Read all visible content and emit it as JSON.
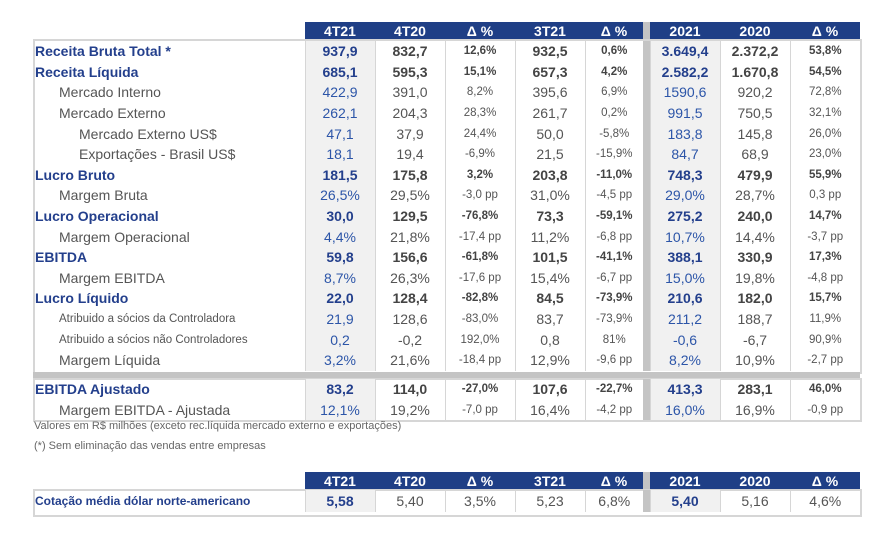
{
  "columns": [
    "4T21",
    "4T20",
    "Δ %",
    "3T21",
    "Δ %",
    "2021",
    "2020",
    "Δ %"
  ],
  "rows": [
    {
      "type": "b",
      "label": "Receita Bruta Total *",
      "values": [
        "937,9",
        "832,7",
        "12,6%",
        "932,5",
        "0,6%",
        "3.649,4",
        "2.372,2",
        "53,8%"
      ]
    },
    {
      "type": "b",
      "label": "Receita Líquida",
      "values": [
        "685,1",
        "595,3",
        "15,1%",
        "657,3",
        "4,2%",
        "2.582,2",
        "1.670,8",
        "54,5%"
      ]
    },
    {
      "type": "ind1",
      "label": "Mercado Interno",
      "values": [
        "422,9",
        "391,0",
        "8,2%",
        "395,6",
        "6,9%",
        "1590,6",
        "920,2",
        "72,8%"
      ]
    },
    {
      "type": "ind1",
      "label": "Mercado Externo",
      "values": [
        "262,1",
        "204,3",
        "28,3%",
        "261,7",
        "0,2%",
        "991,5",
        "750,5",
        "32,1%"
      ]
    },
    {
      "type": "ind2",
      "label": "Mercado Externo US$",
      "values": [
        "47,1",
        "37,9",
        "24,4%",
        "50,0",
        "-5,8%",
        "183,8",
        "145,8",
        "26,0%"
      ]
    },
    {
      "type": "ind2",
      "label": "Exportações - Brasil US$",
      "values": [
        "18,1",
        "19,4",
        "-6,9%",
        "21,5",
        "-15,9%",
        "84,7",
        "68,9",
        "23,0%"
      ]
    },
    {
      "type": "b",
      "label": "Lucro Bruto",
      "values": [
        "181,5",
        "175,8",
        "3,2%",
        "203,8",
        "-11,0%",
        "748,3",
        "479,9",
        "55,9%"
      ]
    },
    {
      "type": "ind1",
      "label": "Margem Bruta",
      "values": [
        "26,5%",
        "29,5%",
        "-3,0 pp",
        "31,0%",
        "-4,5 pp",
        "29,0%",
        "28,7%",
        "0,3 pp"
      ]
    },
    {
      "type": "b",
      "label": "Lucro Operacional",
      "values": [
        "30,0",
        "129,5",
        "-76,8%",
        "73,3",
        "-59,1%",
        "275,2",
        "240,0",
        "14,7%"
      ]
    },
    {
      "type": "ind1",
      "label": "Margem Operacional",
      "values": [
        "4,4%",
        "21,8%",
        "-17,4 pp",
        "11,2%",
        "-6,8 pp",
        "10,7%",
        "14,4%",
        "-3,7 pp"
      ]
    },
    {
      "type": "b",
      "label": "EBITDA",
      "values": [
        "59,8",
        "156,6",
        "-61,8%",
        "101,5",
        "-41,1%",
        "388,1",
        "330,9",
        "17,3%"
      ]
    },
    {
      "type": "ind1",
      "label": "Margem EBITDA",
      "values": [
        "8,7%",
        "26,3%",
        "-17,6 pp",
        "15,4%",
        "-6,7 pp",
        "15,0%",
        "19,8%",
        "-4,8 pp"
      ]
    },
    {
      "type": "b",
      "label": "Lucro Líquido",
      "values": [
        "22,0",
        "128,4",
        "-82,8%",
        "84,5",
        "-73,9%",
        "210,6",
        "182,0",
        "15,7%"
      ]
    },
    {
      "type": "sm",
      "label": "Atribuido a sócios da Controladora",
      "values": [
        "21,9",
        "128,6",
        "-83,0%",
        "83,7",
        "-73,9%",
        "211,2",
        "188,7",
        "11,9%"
      ]
    },
    {
      "type": "sm",
      "label": "Atribuido a sócios não Controladores",
      "values": [
        "0,2",
        "-0,2",
        "192,0%",
        "0,8",
        "81%",
        "-0,6",
        "-6,7",
        "90,9%"
      ]
    },
    {
      "type": "ind1",
      "label": "Margem Líquida",
      "values": [
        "3,2%",
        "21,6%",
        "-18,4 pp",
        "12,9%",
        "-9,6 pp",
        "8,2%",
        "10,9%",
        "-2,7 pp"
      ]
    }
  ],
  "rows_adjusted": [
    {
      "type": "b",
      "label": "EBITDA Ajustado",
      "values": [
        "83,2",
        "114,0",
        "-27,0%",
        "107,6",
        "-22,7%",
        "413,3",
        "283,1",
        "46,0%"
      ]
    },
    {
      "type": "ind1",
      "label": "Margem EBITDA - Ajustada",
      "values": [
        "12,1%",
        "19,2%",
        "-7,0 pp",
        "16,4%",
        "-4,2 pp",
        "16,0%",
        "16,9%",
        "-0,9 pp"
      ]
    }
  ],
  "notes": {
    "units": "Valores em R$ milhões (exceto rec.líquida mercado externo e exportações)",
    "asterisk": "(*) Sem eliminação das vendas entre empresas"
  },
  "fx_table": {
    "columns": [
      "4T21",
      "4T20",
      "Δ %",
      "3T21",
      "Δ %",
      "2021",
      "2020",
      "Δ %"
    ],
    "label": "Cotação média dólar norte-americano",
    "values": [
      "5,58",
      "5,40",
      "3,5%",
      "5,23",
      "6,8%",
      "5,40",
      "5,16",
      "4,6%"
    ]
  },
  "colors": {
    "header_bg": "#1f3f86",
    "accent_text": "#233f8c",
    "highlight_col_bg": "#f1f1f1"
  }
}
